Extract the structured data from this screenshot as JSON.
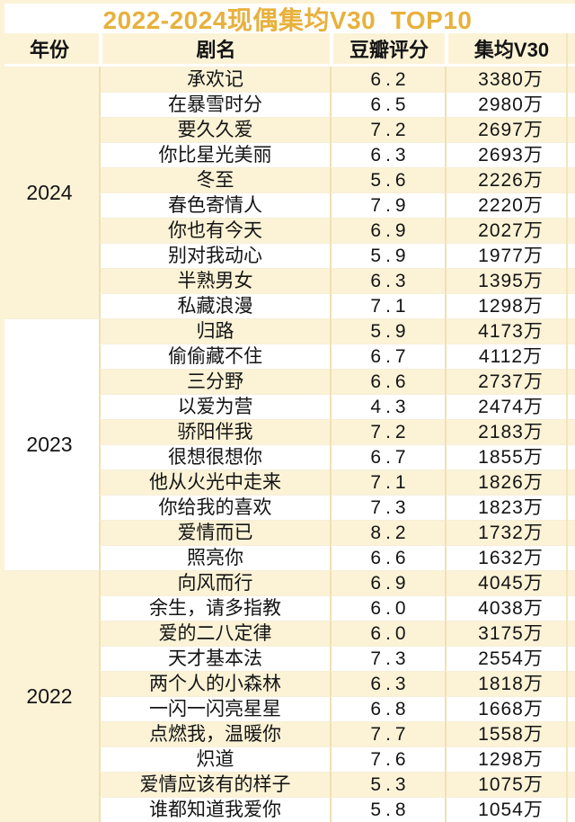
{
  "chart_data": {
    "type": "table",
    "title": "2022-2024现偶集均V30  TOP10",
    "columns": [
      "年份",
      "剧名",
      "豆瓣评分",
      "集均V30"
    ],
    "groups": [
      {
        "year": "2024",
        "rows": [
          [
            "承欢记",
            "6.2",
            "3380万"
          ],
          [
            "在暴雪时分",
            "6.5",
            "2980万"
          ],
          [
            "要久久爱",
            "7.2",
            "2697万"
          ],
          [
            "你比星光美丽",
            "6.3",
            "2693万"
          ],
          [
            "冬至",
            "5.6",
            "2226万"
          ],
          [
            "春色寄情人",
            "7.9",
            "2220万"
          ],
          [
            "你也有今天",
            "6.9",
            "2027万"
          ],
          [
            "别对我动心",
            "5.9",
            "1977万"
          ],
          [
            "半熟男女",
            "6.3",
            "1395万"
          ],
          [
            "私藏浪漫",
            "7.1",
            "1298万"
          ]
        ]
      },
      {
        "year": "2023",
        "rows": [
          [
            "归路",
            "5.9",
            "4173万"
          ],
          [
            "偷偷藏不住",
            "6.7",
            "4112万"
          ],
          [
            "三分野",
            "6.6",
            "2737万"
          ],
          [
            "以爱为营",
            "4.3",
            "2474万"
          ],
          [
            "骄阳伴我",
            "7.2",
            "2183万"
          ],
          [
            "很想很想你",
            "6.7",
            "1855万"
          ],
          [
            "他从火光中走来",
            "7.1",
            "1826万"
          ],
          [
            "你给我的喜欢",
            "7.3",
            "1823万"
          ],
          [
            "爱情而已",
            "8.2",
            "1732万"
          ],
          [
            "照亮你",
            "6.6",
            "1632万"
          ]
        ]
      },
      {
        "year": "2022",
        "rows": [
          [
            "向风而行",
            "6.9",
            "4045万"
          ],
          [
            "余生，请多指教",
            "6.0",
            "4038万"
          ],
          [
            "爱的二八定律",
            "6.0",
            "3175万"
          ],
          [
            "天才基本法",
            "7.3",
            "2554万"
          ],
          [
            "两个人的小森林",
            "6.3",
            "1818万"
          ],
          [
            "一闪一闪亮星星",
            "6.8",
            "1668万"
          ],
          [
            "点燃我，温暖你",
            "7.7",
            "1558万"
          ],
          [
            "炽道",
            "7.6",
            "1298万"
          ],
          [
            "爱情应该有的样子",
            "5.3",
            "1075万"
          ],
          [
            "谁都知道我爱你",
            "5.8",
            "1054万"
          ]
        ]
      }
    ]
  },
  "colors": {
    "title_gold": "#e7b13d",
    "row_cream": "#fcf3d7",
    "row_white": "#ffffff",
    "grid_line": "#eee0b2",
    "text": "#141414"
  }
}
